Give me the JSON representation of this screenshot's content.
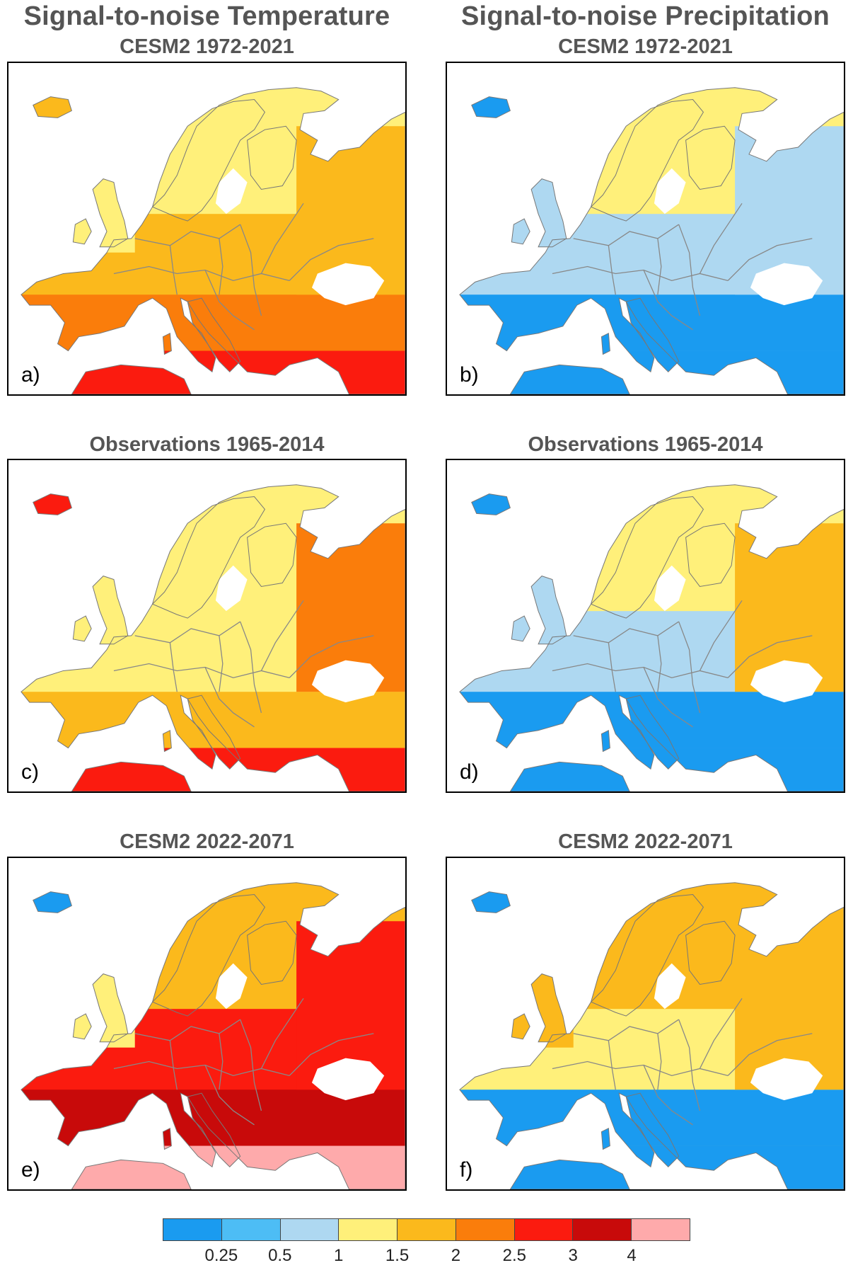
{
  "columns": [
    {
      "title": "Signal-to-noise Temperature"
    },
    {
      "title": "Signal-to-noise Precipitation"
    }
  ],
  "panels": [
    {
      "label": "a)",
      "title": "CESM2 1972-2021",
      "variable": "temperature",
      "zone_classes": {
        "north": 3,
        "central": 4,
        "south": 5,
        "far_south": 6,
        "east": 4,
        "iceland": 4,
        "uk": 3
      }
    },
    {
      "label": "b)",
      "title": "CESM2 1972-2021",
      "variable": "precipitation",
      "zone_classes": {
        "north": 3,
        "central": 2,
        "south": 0,
        "far_south": 0,
        "east": 2,
        "iceland": 0,
        "uk": 2
      }
    },
    {
      "label": "c)",
      "title": "Observations 1965-2014",
      "variable": "temperature",
      "zone_classes": {
        "north": 3,
        "central": 3,
        "south": 4,
        "far_south": 6,
        "east": 5,
        "iceland": 6,
        "uk": 3
      }
    },
    {
      "label": "d)",
      "title": "Observations 1965-2014",
      "variable": "precipitation",
      "zone_classes": {
        "north": 3,
        "central": 2,
        "south": 0,
        "far_south": 0,
        "east": 4,
        "iceland": 0,
        "uk": 2
      }
    },
    {
      "label": "e)",
      "title": "CESM2 2022-2071",
      "variable": "temperature",
      "zone_classes": {
        "north": 4,
        "central": 6,
        "south": 7,
        "far_south": 8,
        "east": 6,
        "iceland": 0,
        "uk": 3
      }
    },
    {
      "label": "f)",
      "title": "CESM2 2022-2071",
      "variable": "precipitation",
      "zone_classes": {
        "north": 4,
        "central": 3,
        "south": 0,
        "far_south": 0,
        "east": 4,
        "iceland": 0,
        "uk": 4
      }
    }
  ],
  "colorbar": {
    "colors": [
      "#1a9bf0",
      "#4dbdf5",
      "#aed8f1",
      "#fff07a",
      "#fbb91c",
      "#fa7d0b",
      "#fb1b0f",
      "#c80a0a",
      "#feaaab"
    ],
    "tick_labels": [
      "0.25",
      "0.5",
      "1",
      "1.5",
      "2",
      "2.5",
      "3",
      "4"
    ]
  }
}
